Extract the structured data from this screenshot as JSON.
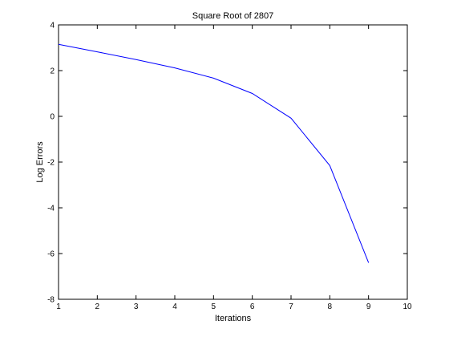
{
  "chart_data": {
    "type": "line",
    "title": "Square Root of 2807",
    "xlabel": "Iterations",
    "ylabel": "Log Errors",
    "xlim": [
      1,
      10
    ],
    "ylim": [
      -8,
      4
    ],
    "xticks": [
      1,
      2,
      3,
      4,
      5,
      6,
      7,
      8,
      9,
      10
    ],
    "yticks": [
      4,
      2,
      0,
      -2,
      -4,
      -6,
      -8
    ],
    "grid": false,
    "series": [
      {
        "color": "#0000ff",
        "x": [
          1,
          2,
          3,
          4,
          5,
          6,
          7,
          8,
          9
        ],
        "y": [
          3.15,
          2.82,
          2.48,
          2.12,
          1.67,
          1.0,
          -0.08,
          -2.15,
          -6.4
        ]
      }
    ]
  }
}
